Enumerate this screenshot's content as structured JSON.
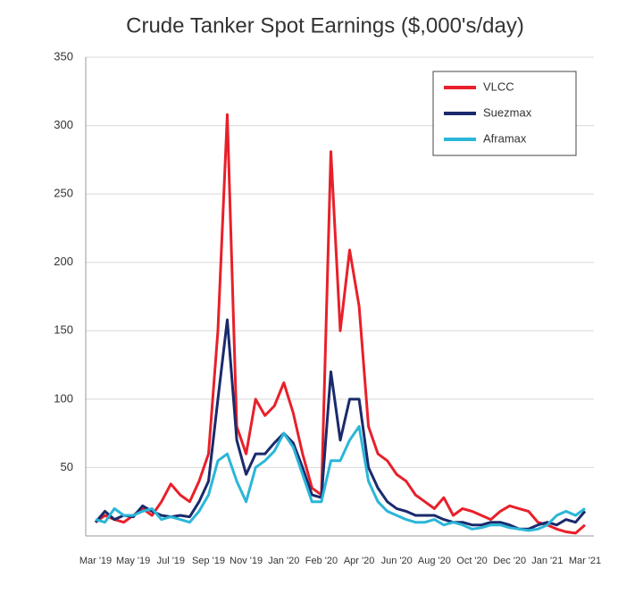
{
  "chart_data": {
    "type": "line",
    "title": "Crude Tanker Spot Earnings ($,000's/day)",
    "categories": [
      "Mar '19",
      null,
      null,
      null,
      "May '19",
      null,
      null,
      null,
      "Jul '19",
      null,
      null,
      null,
      "Sep '19",
      null,
      null,
      null,
      "Nov '19",
      null,
      null,
      null,
      "Jan '20",
      null,
      null,
      null,
      "Feb '20",
      null,
      null,
      null,
      "Apr '20",
      null,
      null,
      null,
      "Jun '20",
      null,
      null,
      null,
      "Aug '20",
      null,
      null,
      null,
      "Oct '20",
      null,
      null,
      null,
      "Dec '20",
      null,
      null,
      null,
      "Jan '21",
      null,
      null,
      null,
      "Mar '21"
    ],
    "series": [
      {
        "name": "VLCC",
        "color": "#e8202a",
        "values": [
          10,
          15,
          12,
          10,
          15,
          20,
          15,
          25,
          38,
          30,
          25,
          40,
          60,
          150,
          308,
          80,
          60,
          100,
          88,
          95,
          112,
          90,
          60,
          35,
          30,
          281,
          150,
          209,
          168,
          80,
          60,
          55,
          45,
          40,
          30,
          25,
          20,
          28,
          15,
          20,
          18,
          15,
          12,
          18,
          22,
          20,
          18,
          10,
          8,
          5,
          3,
          2,
          8
        ]
      },
      {
        "name": "Suezmax",
        "color": "#1a2a6c",
        "values": [
          10,
          18,
          12,
          15,
          14,
          22,
          18,
          15,
          14,
          15,
          14,
          25,
          40,
          100,
          158,
          70,
          45,
          60,
          60,
          68,
          75,
          68,
          50,
          30,
          28,
          120,
          70,
          100,
          100,
          50,
          35,
          25,
          20,
          18,
          15,
          15,
          15,
          12,
          10,
          10,
          8,
          8,
          10,
          10,
          8,
          5,
          5,
          8,
          10,
          8,
          12,
          10,
          18
        ]
      },
      {
        "name": "Aframax",
        "color": "#2ab6d8",
        "values": [
          12,
          10,
          20,
          15,
          15,
          18,
          20,
          12,
          14,
          12,
          10,
          18,
          30,
          55,
          60,
          40,
          25,
          50,
          55,
          62,
          75,
          65,
          45,
          25,
          25,
          55,
          55,
          70,
          80,
          40,
          25,
          18,
          15,
          12,
          10,
          10,
          12,
          8,
          10,
          8,
          5,
          6,
          8,
          8,
          6,
          5,
          4,
          5,
          8,
          15,
          18,
          15,
          20
        ]
      }
    ],
    "ylim": [
      0,
      350
    ],
    "yticks": [
      50,
      100,
      150,
      200,
      250,
      300,
      350
    ],
    "grid": true,
    "legend": "top-right"
  }
}
